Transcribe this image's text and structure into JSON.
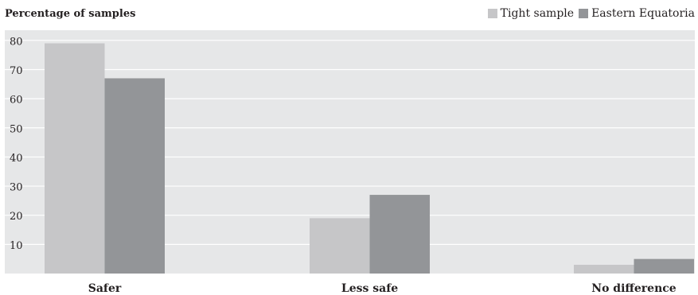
{
  "chart_data": {
    "type": "bar",
    "title": "",
    "ylabel": "Percentage of samples",
    "xlabel": "",
    "categories": [
      "Safer",
      "Less safe",
      "No difference"
    ],
    "series": [
      {
        "name": "Tight sample",
        "color": "#c6c6c8",
        "values": [
          79,
          19,
          3
        ]
      },
      {
        "name": "Eastern Equatoria",
        "color": "#939598",
        "values": [
          67,
          27,
          5
        ]
      }
    ],
    "ylim": [
      0,
      80
    ],
    "yticks": [
      10,
      20,
      30,
      40,
      50,
      60,
      70,
      80
    ],
    "grid": true,
    "legend": "top-right",
    "background": "#e6e7e8"
  }
}
